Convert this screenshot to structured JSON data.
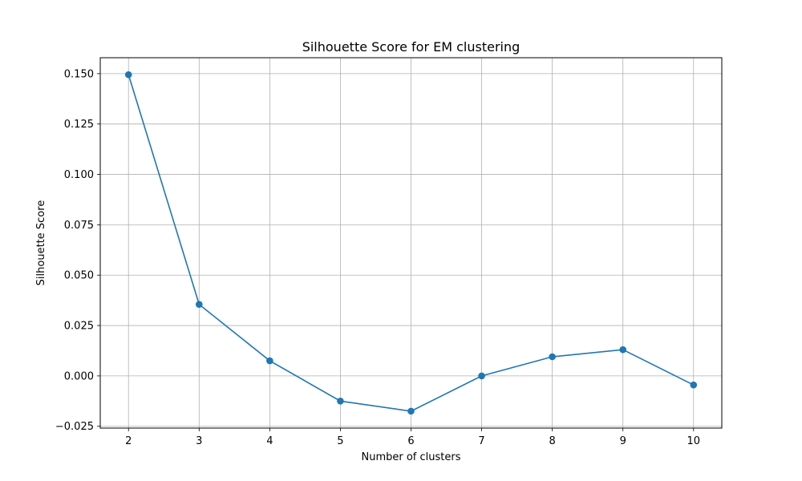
{
  "chart_data": {
    "type": "line",
    "title": "Silhouette Score for EM clustering",
    "xlabel": "Number of clusters",
    "ylabel": "Silhouette Score",
    "x": [
      2,
      3,
      4,
      5,
      6,
      7,
      8,
      9,
      10
    ],
    "series": [
      {
        "values": [
          0.1495,
          0.0355,
          0.0075,
          -0.0125,
          -0.0175,
          0.0,
          0.0095,
          0.013,
          -0.0045
        ],
        "color": "#1f77b4",
        "marker": "circle"
      }
    ],
    "xticks": [
      2,
      3,
      4,
      5,
      6,
      7,
      8,
      9,
      10
    ],
    "xtick_labels": [
      "2",
      "3",
      "4",
      "5",
      "6",
      "7",
      "8",
      "9",
      "10"
    ],
    "yticks": [
      -0.025,
      0.0,
      0.025,
      0.05,
      0.075,
      0.1,
      0.125,
      0.15
    ],
    "ytick_labels": [
      "−0.025",
      "0.000",
      "0.025",
      "0.050",
      "0.075",
      "0.100",
      "0.125",
      "0.150"
    ],
    "xlim": [
      1.6,
      10.4
    ],
    "ylim": [
      -0.0259,
      0.1579
    ],
    "grid": true
  }
}
